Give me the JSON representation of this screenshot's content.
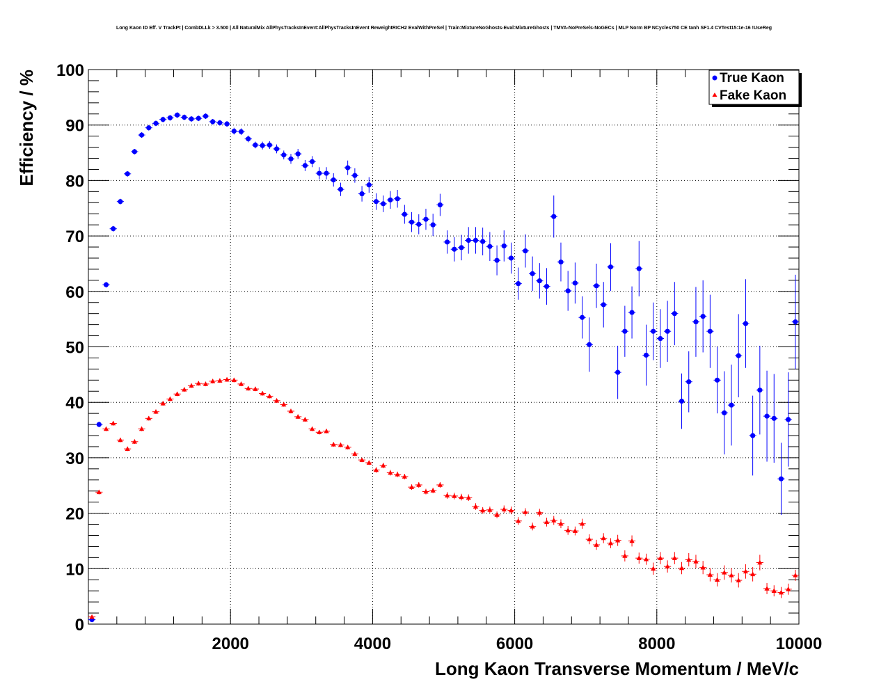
{
  "chart_data": {
    "type": "scatter",
    "title": "Long Kaon ID Eff. V TrackPt | CombDLLk > 3.500 | All NaturalMix AllPhysTracksInEvent:AllPhysTracksInEvent ReweightRICH2 EvalWithPreSel | Train:MixtureNoGhosts-Eval:MixtureGhosts | TMVA-NoPreSels-NoGECs | MLP Norm BP NCycles750 CE tanh SF1.4 CVTest15:1e-16 !UseReg",
    "xlabel": "Long Kaon Transverse Momentum / MeV/c",
    "ylabel": "Efficiency / %",
    "xlim": [
      0,
      10000
    ],
    "ylim": [
      0,
      100
    ],
    "x_ticks": [
      2000,
      4000,
      6000,
      8000,
      10000
    ],
    "y_ticks": [
      0,
      10,
      20,
      30,
      40,
      50,
      60,
      70,
      80,
      90,
      100
    ],
    "grid": true,
    "legend_position": "top-right",
    "x": [
      50,
      150,
      250,
      350,
      450,
      550,
      650,
      750,
      850,
      950,
      1050,
      1150,
      1250,
      1350,
      1450,
      1550,
      1650,
      1750,
      1850,
      1950,
      2050,
      2150,
      2250,
      2350,
      2450,
      2550,
      2650,
      2750,
      2850,
      2950,
      3050,
      3150,
      3250,
      3350,
      3450,
      3550,
      3650,
      3750,
      3850,
      3950,
      4050,
      4150,
      4250,
      4350,
      4450,
      4550,
      4650,
      4750,
      4850,
      4950,
      5050,
      5150,
      5250,
      5350,
      5450,
      5550,
      5650,
      5750,
      5850,
      5950,
      6050,
      6150,
      6250,
      6350,
      6450,
      6550,
      6650,
      6750,
      6850,
      6950,
      7050,
      7150,
      7250,
      7350,
      7450,
      7550,
      7650,
      7750,
      7850,
      7950,
      8050,
      8150,
      8250,
      8350,
      8450,
      8550,
      8650,
      8750,
      8850,
      8950,
      9050,
      9150,
      9250,
      9350,
      9450,
      9550,
      9650,
      9750,
      9850,
      9950
    ],
    "series": [
      {
        "name": "True Kaon",
        "color": "#0000ff",
        "marker": "circle",
        "values": [
          0.8,
          36.0,
          61.2,
          71.3,
          76.2,
          81.2,
          85.2,
          88.2,
          89.5,
          90.3,
          91.0,
          91.3,
          91.8,
          91.4,
          91.1,
          91.2,
          91.6,
          90.6,
          90.4,
          90.2,
          88.9,
          88.8,
          87.5,
          86.4,
          86.3,
          86.4,
          85.7,
          84.6,
          83.9,
          84.8,
          82.7,
          83.4,
          81.3,
          81.3,
          80.1,
          78.4,
          82.3,
          80.9,
          77.6,
          79.2,
          76.2,
          75.8,
          76.5,
          76.7,
          73.9,
          72.5,
          72.1,
          73.0,
          72.0,
          75.6,
          68.9,
          67.6,
          67.9,
          69.2,
          69.2,
          69.0,
          68.1,
          65.6,
          68.2,
          66.0,
          61.4,
          67.3,
          63.2,
          61.9,
          60.9,
          73.5,
          65.3,
          60.1,
          61.5,
          55.3,
          50.4,
          61.0,
          57.6,
          64.4,
          45.4,
          52.8,
          56.2,
          64.1,
          48.5,
          52.8,
          51.5,
          52.8,
          56.0,
          40.2,
          43.7,
          54.5,
          55.5,
          52.8,
          44.0,
          38.1,
          39.5,
          48.4,
          54.2,
          34.0,
          42.2,
          37.5,
          37.1,
          26.2,
          36.9,
          54.5
        ],
        "errors": [
          0.3,
          0.5,
          0.5,
          0.5,
          0.5,
          0.5,
          0.5,
          0.5,
          0.5,
          0.5,
          0.5,
          0.5,
          0.5,
          0.5,
          0.5,
          0.5,
          0.5,
          0.5,
          0.5,
          0.5,
          0.6,
          0.6,
          0.6,
          0.6,
          0.7,
          0.7,
          0.8,
          0.8,
          0.9,
          0.9,
          1.0,
          1.0,
          1.1,
          1.1,
          1.2,
          1.2,
          1.3,
          1.3,
          1.4,
          1.4,
          1.5,
          1.5,
          1.6,
          1.6,
          1.7,
          1.8,
          1.8,
          1.9,
          2.0,
          2.0,
          2.1,
          2.2,
          2.3,
          2.4,
          2.4,
          2.5,
          2.6,
          2.7,
          2.8,
          2.8,
          2.9,
          3.0,
          3.1,
          3.2,
          3.3,
          3.8,
          3.5,
          3.6,
          3.7,
          3.8,
          4.9,
          4.0,
          4.1,
          4.3,
          4.8,
          4.6,
          4.7,
          5.0,
          5.5,
          5.2,
          5.3,
          5.5,
          5.7,
          5.0,
          5.5,
          6.3,
          6.5,
          6.6,
          6.0,
          7.5,
          7.3,
          7.5,
          8.0,
          7.2,
          8.0,
          8.2,
          8.0,
          6.5,
          8.5,
          8.5
        ]
      },
      {
        "name": "Fake Kaon",
        "color": "#ff0000",
        "marker": "triangle",
        "values": [
          1.3,
          23.8,
          35.2,
          36.2,
          33.2,
          31.6,
          32.9,
          35.2,
          37.1,
          38.3,
          39.8,
          40.6,
          41.5,
          42.3,
          43.0,
          43.4,
          43.3,
          43.8,
          43.9,
          44.1,
          44.0,
          43.3,
          42.5,
          42.4,
          41.6,
          41.1,
          40.3,
          39.6,
          38.4,
          37.4,
          36.9,
          35.2,
          34.6,
          34.8,
          32.4,
          32.3,
          31.9,
          30.7,
          29.6,
          29.1,
          27.8,
          28.6,
          27.3,
          27.0,
          26.6,
          24.7,
          25.1,
          23.9,
          24.1,
          25.1,
          23.2,
          23.1,
          22.9,
          22.8,
          21.2,
          20.5,
          20.6,
          19.7,
          20.7,
          20.5,
          18.6,
          20.2,
          17.6,
          20.1,
          18.4,
          18.7,
          18.1,
          16.9,
          16.8,
          18.1,
          15.3,
          14.3,
          15.5,
          14.6,
          15.1,
          12.3,
          15.0,
          11.9,
          11.7,
          10.0,
          11.9,
          10.4,
          11.9,
          10.1,
          11.6,
          11.3,
          10.2,
          8.9,
          8.0,
          9.3,
          8.8,
          7.9,
          9.5,
          9.0,
          11.1,
          6.4,
          6.0,
          5.7,
          6.3,
          8.8
        ],
        "errors": [
          0.3,
          0.4,
          0.4,
          0.4,
          0.4,
          0.4,
          0.4,
          0.4,
          0.4,
          0.4,
          0.4,
          0.4,
          0.4,
          0.4,
          0.4,
          0.4,
          0.4,
          0.4,
          0.4,
          0.4,
          0.4,
          0.4,
          0.4,
          0.4,
          0.4,
          0.4,
          0.4,
          0.4,
          0.4,
          0.4,
          0.4,
          0.4,
          0.4,
          0.4,
          0.4,
          0.4,
          0.4,
          0.4,
          0.4,
          0.4,
          0.5,
          0.5,
          0.5,
          0.5,
          0.5,
          0.5,
          0.5,
          0.5,
          0.5,
          0.5,
          0.6,
          0.6,
          0.6,
          0.6,
          0.6,
          0.6,
          0.6,
          0.6,
          0.7,
          0.7,
          0.7,
          0.7,
          0.7,
          0.7,
          0.8,
          0.8,
          0.8,
          0.8,
          0.8,
          0.9,
          0.9,
          0.9,
          0.9,
          0.9,
          1.0,
          1.0,
          1.0,
          1.0,
          1.0,
          1.1,
          1.1,
          1.1,
          1.1,
          1.1,
          1.2,
          1.2,
          1.2,
          1.2,
          1.2,
          1.3,
          1.3,
          1.3,
          1.3,
          1.3,
          1.4,
          1.0,
          1.0,
          1.0,
          1.0,
          1.0
        ]
      }
    ]
  }
}
